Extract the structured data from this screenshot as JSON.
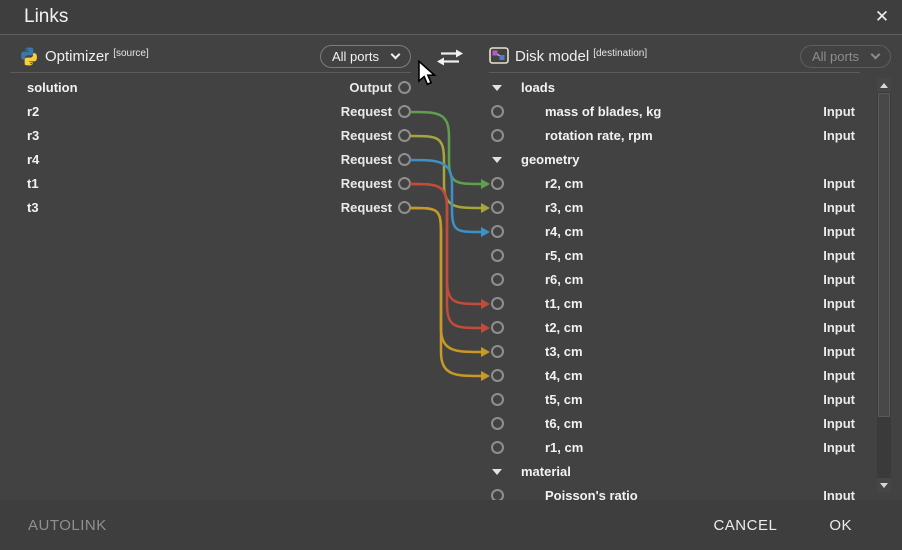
{
  "dialog": {
    "title": "Links",
    "close_icon": "✕"
  },
  "source_panel": {
    "name": "Optimizer",
    "tag": "[source]",
    "ports_filter": "All ports",
    "items": [
      {
        "label": "solution",
        "port": "Output"
      },
      {
        "label": "r2",
        "port": "Request"
      },
      {
        "label": "r3",
        "port": "Request"
      },
      {
        "label": "r4",
        "port": "Request"
      },
      {
        "label": "t1",
        "port": "Request"
      },
      {
        "label": "t3",
        "port": "Request"
      }
    ]
  },
  "destination_panel": {
    "name": "Disk model",
    "tag": "[destination]",
    "ports_filter": "All ports",
    "rows": [
      {
        "label": "loads",
        "kind": "group"
      },
      {
        "label": "mass of blades, kg",
        "kind": "leaf",
        "port": "Input"
      },
      {
        "label": "rotation rate, rpm",
        "kind": "leaf",
        "port": "Input"
      },
      {
        "label": "geometry",
        "kind": "group"
      },
      {
        "label": "r2, cm",
        "kind": "leaf",
        "port": "Input"
      },
      {
        "label": "r3, cm",
        "kind": "leaf",
        "port": "Input"
      },
      {
        "label": "r4, cm",
        "kind": "leaf",
        "port": "Input"
      },
      {
        "label": "r5, cm",
        "kind": "leaf",
        "port": "Input"
      },
      {
        "label": "r6, cm",
        "kind": "leaf",
        "port": "Input"
      },
      {
        "label": "t1, cm",
        "kind": "leaf",
        "port": "Input"
      },
      {
        "label": "t2, cm",
        "kind": "leaf",
        "port": "Input"
      },
      {
        "label": "t3, cm",
        "kind": "leaf",
        "port": "Input"
      },
      {
        "label": "t4, cm",
        "kind": "leaf",
        "port": "Input"
      },
      {
        "label": "t5, cm",
        "kind": "leaf",
        "port": "Input"
      },
      {
        "label": "t6, cm",
        "kind": "leaf",
        "port": "Input"
      },
      {
        "label": "r1, cm",
        "kind": "leaf",
        "port": "Input"
      },
      {
        "label": "material",
        "kind": "group"
      },
      {
        "label": "Poisson's ratio",
        "kind": "leaf",
        "port": "Input"
      }
    ]
  },
  "links": [
    {
      "from": "r2",
      "to": "r2, cm",
      "color": "#5f9f4e"
    },
    {
      "from": "r3",
      "to": "r3, cm",
      "color": "#a6a63b"
    },
    {
      "from": "r4",
      "to": "r4, cm",
      "color": "#3e91c6"
    },
    {
      "from": "t1",
      "to": "t1, cm",
      "color": "#c24b3a"
    },
    {
      "from": "t1",
      "to": "t2, cm",
      "color": "#c24b3a"
    },
    {
      "from": "t3",
      "to": "t3, cm",
      "color": "#c79a27"
    },
    {
      "from": "t3",
      "to": "t4, cm",
      "color": "#c79a27"
    }
  ],
  "footer": {
    "autolink": "AUTOLINK",
    "cancel": "CANCEL",
    "ok": "OK"
  }
}
